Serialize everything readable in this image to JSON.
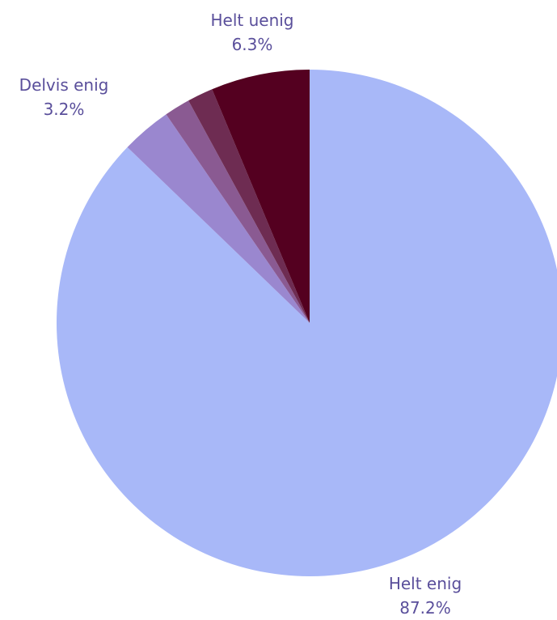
{
  "chart_data": {
    "type": "pie",
    "slices": [
      {
        "label": "Helt enig",
        "value": 87.2,
        "display": "87.2%",
        "color": "#a8b8f8"
      },
      {
        "label": "Delvis enig",
        "value": 3.2,
        "display": "3.2%",
        "color": "#9a87cf"
      },
      {
        "label": "",
        "value": 1.65,
        "display": "",
        "color": "#8a5a92"
      },
      {
        "label": "",
        "value": 1.65,
        "display": "",
        "color": "#6e2c52"
      },
      {
        "label": "Helt uenig",
        "value": 6.3,
        "display": "6.3%",
        "color": "#540020"
      }
    ],
    "start": "top",
    "direction": "clockwise",
    "label_color": "#5a4f9b"
  }
}
